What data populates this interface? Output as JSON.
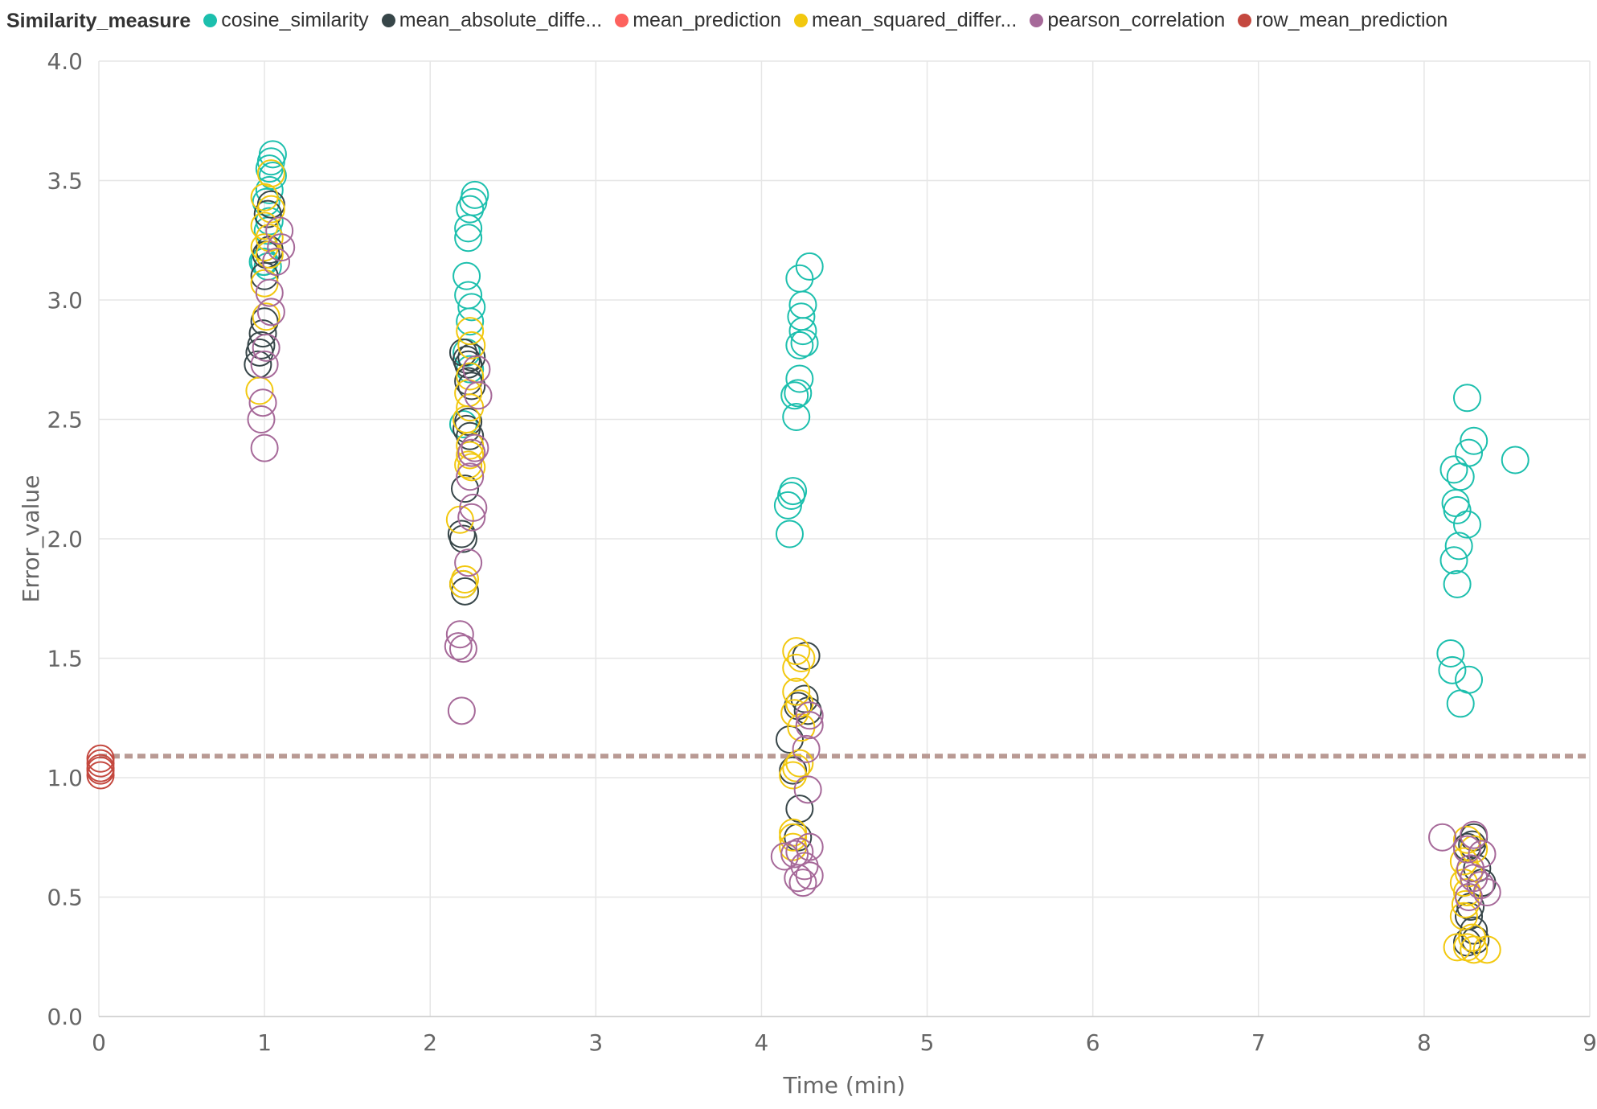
{
  "chart_data": {
    "type": "scatter",
    "legend_title": "Similarity_measure",
    "legend_position": "top-left",
    "xlabel": "Time (min)",
    "ylabel": "Error_value",
    "xlim": [
      0,
      9
    ],
    "ylim": [
      0,
      4
    ],
    "x_ticks": [
      "0",
      "1",
      "2",
      "3",
      "4",
      "5",
      "6",
      "7",
      "8",
      "9"
    ],
    "y_ticks": [
      "0.0",
      "0.5",
      "1.0",
      "1.5",
      "2.0",
      "2.5",
      "3.0",
      "3.5",
      "4.0"
    ],
    "grid": true,
    "marker": "hollow-circle",
    "reference_line": {
      "y": 1.09,
      "style": "dashed",
      "color": "#b99a94"
    },
    "series": [
      {
        "name": "cosine_similarity",
        "legend_label": "cosine_similarity",
        "color": "#1cbfad",
        "points": [
          [
            1.05,
            3.61
          ],
          [
            1.04,
            3.58
          ],
          [
            1.03,
            3.55
          ],
          [
            1.05,
            3.52
          ],
          [
            1.03,
            3.46
          ],
          [
            1.01,
            3.41
          ],
          [
            1.03,
            3.33
          ],
          [
            1.02,
            3.29
          ],
          [
            1.0,
            3.16
          ],
          [
            0.99,
            3.16
          ],
          [
            1.02,
            3.14
          ],
          [
            2.27,
            3.44
          ],
          [
            2.26,
            3.41
          ],
          [
            2.24,
            3.38
          ],
          [
            2.23,
            3.3
          ],
          [
            2.23,
            3.26
          ],
          [
            2.22,
            3.1
          ],
          [
            2.23,
            3.02
          ],
          [
            2.25,
            2.97
          ],
          [
            2.24,
            2.91
          ],
          [
            2.22,
            2.78
          ],
          [
            2.24,
            2.71
          ],
          [
            2.2,
            2.48
          ],
          [
            4.29,
            3.14
          ],
          [
            4.23,
            3.09
          ],
          [
            4.25,
            2.98
          ],
          [
            4.24,
            2.93
          ],
          [
            4.25,
            2.87
          ],
          [
            4.26,
            2.82
          ],
          [
            4.23,
            2.81
          ],
          [
            4.23,
            2.67
          ],
          [
            4.2,
            2.6
          ],
          [
            4.22,
            2.61
          ],
          [
            4.21,
            2.51
          ],
          [
            4.18,
            2.18
          ],
          [
            4.19,
            2.2
          ],
          [
            4.16,
            2.14
          ],
          [
            4.17,
            2.02
          ],
          [
            8.26,
            2.59
          ],
          [
            8.3,
            2.41
          ],
          [
            8.27,
            2.36
          ],
          [
            8.55,
            2.33
          ],
          [
            8.18,
            2.29
          ],
          [
            8.22,
            2.26
          ],
          [
            8.19,
            2.15
          ],
          [
            8.2,
            2.12
          ],
          [
            8.26,
            2.06
          ],
          [
            8.21,
            1.97
          ],
          [
            8.18,
            1.91
          ],
          [
            8.2,
            1.81
          ],
          [
            8.16,
            1.52
          ],
          [
            8.17,
            1.45
          ],
          [
            8.27,
            1.41
          ],
          [
            8.22,
            1.31
          ]
        ]
      },
      {
        "name": "mean_absolute_difference",
        "legend_label": "mean_absolute_diffe...",
        "color": "#374649",
        "points": [
          [
            1.04,
            3.4
          ],
          [
            1.02,
            3.36
          ],
          [
            1.03,
            3.21
          ],
          [
            1.01,
            3.19
          ],
          [
            1.0,
            3.1
          ],
          [
            1.0,
            2.91
          ],
          [
            0.99,
            2.86
          ],
          [
            0.98,
            2.81
          ],
          [
            0.97,
            2.78
          ],
          [
            0.96,
            2.73
          ],
          [
            2.2,
            2.78
          ],
          [
            2.22,
            2.75
          ],
          [
            2.23,
            2.73
          ],
          [
            2.25,
            2.76
          ],
          [
            2.23,
            2.66
          ],
          [
            2.25,
            2.64
          ],
          [
            2.23,
            2.49
          ],
          [
            2.22,
            2.46
          ],
          [
            2.24,
            2.43
          ],
          [
            2.21,
            2.21
          ],
          [
            2.19,
            2.02
          ],
          [
            2.2,
            2.0
          ],
          [
            2.2,
            1.81
          ],
          [
            2.21,
            1.78
          ],
          [
            4.27,
            1.51
          ],
          [
            4.26,
            1.33
          ],
          [
            4.22,
            1.3
          ],
          [
            4.28,
            1.28
          ],
          [
            4.17,
            1.16
          ],
          [
            4.19,
            1.03
          ],
          [
            4.23,
            0.87
          ],
          [
            4.22,
            0.75
          ],
          [
            8.3,
            0.75
          ],
          [
            8.29,
            0.72
          ],
          [
            8.26,
            0.71
          ],
          [
            8.32,
            0.62
          ],
          [
            8.35,
            0.56
          ],
          [
            8.28,
            0.46
          ],
          [
            8.27,
            0.42
          ],
          [
            8.3,
            0.36
          ],
          [
            8.31,
            0.32
          ],
          [
            8.26,
            0.31
          ]
        ]
      },
      {
        "name": "mean_prediction",
        "legend_label": "mean_prediction",
        "color": "#fd625e",
        "points": []
      },
      {
        "name": "mean_squared_difference",
        "legend_label": "mean_squared_differ...",
        "color": "#f2c80f",
        "points": [
          [
            1.04,
            3.53
          ],
          [
            1.0,
            3.43
          ],
          [
            1.04,
            3.38
          ],
          [
            1.0,
            3.31
          ],
          [
            1.03,
            3.26
          ],
          [
            1.0,
            3.22
          ],
          [
            1.03,
            3.19
          ],
          [
            1.0,
            3.07
          ],
          [
            1.01,
            2.93
          ],
          [
            0.97,
            2.62
          ],
          [
            2.24,
            2.87
          ],
          [
            2.25,
            2.81
          ],
          [
            2.24,
            2.68
          ],
          [
            2.23,
            2.61
          ],
          [
            2.24,
            2.55
          ],
          [
            2.22,
            2.5
          ],
          [
            2.24,
            2.39
          ],
          [
            2.24,
            2.35
          ],
          [
            2.25,
            2.3
          ],
          [
            2.23,
            2.31
          ],
          [
            2.18,
            2.08
          ],
          [
            2.21,
            1.83
          ],
          [
            2.2,
            1.81
          ],
          [
            4.21,
            1.53
          ],
          [
            4.24,
            1.5
          ],
          [
            4.21,
            1.46
          ],
          [
            4.21,
            1.36
          ],
          [
            4.23,
            1.31
          ],
          [
            4.2,
            1.27
          ],
          [
            4.24,
            1.21
          ],
          [
            4.23,
            1.06
          ],
          [
            4.21,
            1.04
          ],
          [
            4.19,
            1.01
          ],
          [
            4.19,
            0.77
          ],
          [
            4.19,
            0.75
          ],
          [
            4.19,
            0.71
          ],
          [
            8.26,
            0.74
          ],
          [
            8.3,
            0.7
          ],
          [
            8.24,
            0.65
          ],
          [
            8.27,
            0.6
          ],
          [
            8.24,
            0.56
          ],
          [
            8.26,
            0.52
          ],
          [
            8.25,
            0.47
          ],
          [
            8.24,
            0.42
          ],
          [
            8.29,
            0.33
          ],
          [
            8.2,
            0.29
          ],
          [
            8.26,
            0.29
          ],
          [
            8.3,
            0.28
          ],
          [
            8.38,
            0.28
          ]
        ]
      },
      {
        "name": "pearson_correlation",
        "legend_label": "pearson_correlation",
        "color": "#a66999",
        "points": [
          [
            1.09,
            3.29
          ],
          [
            1.1,
            3.22
          ],
          [
            1.07,
            3.16
          ],
          [
            1.03,
            3.03
          ],
          [
            1.04,
            2.95
          ],
          [
            1.01,
            2.8
          ],
          [
            1.0,
            2.73
          ],
          [
            0.99,
            2.57
          ],
          [
            0.98,
            2.5
          ],
          [
            1.0,
            2.38
          ],
          [
            2.28,
            2.71
          ],
          [
            2.29,
            2.6
          ],
          [
            2.27,
            2.38
          ],
          [
            2.25,
            2.36
          ],
          [
            2.24,
            2.26
          ],
          [
            2.26,
            2.13
          ],
          [
            2.25,
            2.09
          ],
          [
            2.23,
            1.9
          ],
          [
            2.18,
            1.6
          ],
          [
            2.17,
            1.55
          ],
          [
            2.2,
            1.54
          ],
          [
            2.19,
            1.28
          ],
          [
            4.29,
            1.26
          ],
          [
            4.29,
            1.22
          ],
          [
            4.27,
            1.12
          ],
          [
            4.28,
            0.95
          ],
          [
            4.29,
            0.71
          ],
          [
            4.23,
            0.69
          ],
          [
            4.14,
            0.67
          ],
          [
            4.2,
            0.68
          ],
          [
            4.26,
            0.63
          ],
          [
            4.29,
            0.59
          ],
          [
            4.22,
            0.58
          ],
          [
            4.25,
            0.56
          ],
          [
            8.11,
            0.75
          ],
          [
            8.3,
            0.76
          ],
          [
            8.26,
            0.7
          ],
          [
            8.35,
            0.68
          ],
          [
            8.28,
            0.62
          ],
          [
            8.3,
            0.58
          ],
          [
            8.38,
            0.52
          ],
          [
            8.34,
            0.55
          ],
          [
            8.27,
            0.5
          ]
        ]
      },
      {
        "name": "row_mean_prediction",
        "legend_label": "row_mean_prediction",
        "color": "#c4483f",
        "points": [
          [
            0.01,
            1.08
          ],
          [
            0.01,
            1.06
          ],
          [
            0.01,
            1.04
          ],
          [
            0.01,
            1.03
          ],
          [
            0.01,
            1.01
          ]
        ]
      }
    ]
  }
}
